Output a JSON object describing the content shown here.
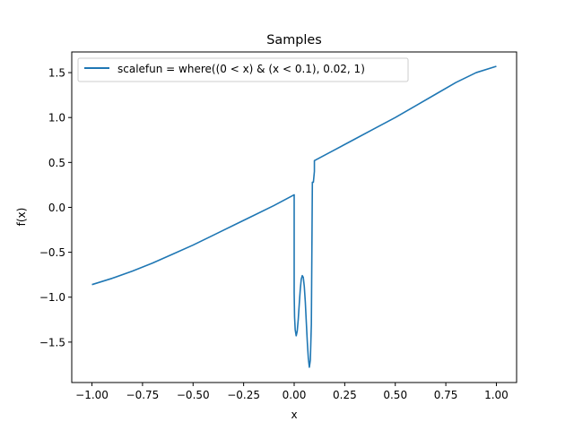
{
  "chart_data": {
    "type": "line",
    "title": "Samples",
    "xlabel": "x",
    "ylabel": "f(x)",
    "xlim": [
      -1.1,
      1.1
    ],
    "ylim": [
      -1.95,
      1.73
    ],
    "xticks": [
      -1.0,
      -0.75,
      -0.5,
      -0.25,
      0.0,
      0.25,
      0.5,
      0.75,
      1.0
    ],
    "xtick_labels": [
      "−1.00",
      "−0.75",
      "−0.50",
      "−0.25",
      "0.00",
      "0.25",
      "0.50",
      "0.75",
      "1.00"
    ],
    "yticks": [
      -1.5,
      -1.0,
      -0.5,
      0.0,
      0.5,
      1.0,
      1.5
    ],
    "ytick_labels": [
      "−1.5",
      "−1.0",
      "−0.5",
      "0.0",
      "0.5",
      "1.0",
      "1.5"
    ],
    "grid": false,
    "legend_position": "top-left",
    "series": [
      {
        "name": "scalefun = where((0 < x) & (x < 0.1), 0.02, 1)",
        "color": "#1f77b4",
        "x": [
          -1.0,
          -0.9,
          -0.8,
          -0.7,
          -0.6,
          -0.5,
          -0.4,
          -0.3,
          -0.2,
          -0.1,
          0.0,
          0.0,
          0.002,
          0.005,
          0.01,
          0.015,
          0.02,
          0.025,
          0.03,
          0.035,
          0.04,
          0.045,
          0.05,
          0.055,
          0.06,
          0.065,
          0.07,
          0.075,
          0.08,
          0.085,
          0.09,
          0.095,
          0.1,
          0.1,
          0.2,
          0.3,
          0.4,
          0.5,
          0.6,
          0.7,
          0.8,
          0.9,
          1.0
        ],
        "y": [
          -0.86,
          -0.79,
          -0.71,
          -0.62,
          -0.52,
          -0.42,
          -0.31,
          -0.2,
          -0.09,
          0.02,
          0.14,
          -0.95,
          -1.22,
          -1.36,
          -1.43,
          -1.38,
          -1.25,
          -1.08,
          -0.92,
          -0.8,
          -0.76,
          -0.78,
          -0.88,
          -1.05,
          -1.28,
          -1.5,
          -1.68,
          -1.78,
          -1.7,
          -1.3,
          0.28,
          0.28,
          0.4,
          0.52,
          0.64,
          0.76,
          0.88,
          1.0,
          1.13,
          1.26,
          1.39,
          1.5,
          1.57
        ]
      }
    ]
  }
}
